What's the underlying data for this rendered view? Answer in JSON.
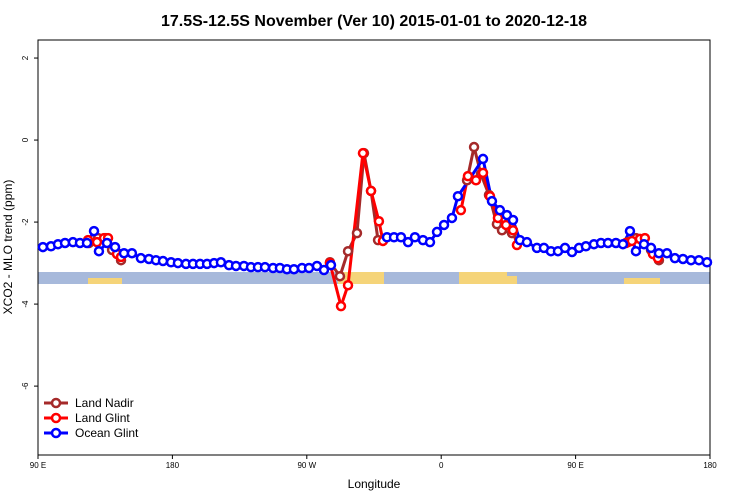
{
  "chart_data": {
    "type": "line",
    "title": "17.5S-12.5S November (Ver 10)   2015-01-01 to 2020-12-18",
    "x_label": "Longitude",
    "y_label": "XCO2 - MLO trend (ppm)",
    "xlim": [
      90,
      540
    ],
    "xticks": [
      {
        "value": 90,
        "label": "90 E"
      },
      180,
      {
        "value": 270,
        "label": "90 W"
      },
      {
        "value": 360,
        "label": "0"
      },
      {
        "value": 450,
        "label": "90 E"
      },
      {
        "value": 540,
        "label": "180"
      }
    ],
    "ylim": [
      -7.68,
      2.44
    ],
    "yticks": [
      -6,
      -4,
      -2,
      0,
      2
    ],
    "legend": "bottom-left",
    "series": [
      {
        "name": "Land Nadir",
        "color": "#a52a2a",
        "x": [
          124.1,
          130.2,
          135.5,
          139.6,
          145.6,
          null,
          285.5,
          292.2,
          297.6,
          303.6,
          308.3,
          313.0,
          317.7,
          null,
          377.3,
          382.0,
          386.6,
          392.0,
          397.3,
          400.7,
          407.4,
          null,
          485.0,
          490.4,
          495.1,
          500.5,
          505.8
        ],
        "values": [
          -2.51,
          -2.39,
          -2.39,
          -2.68,
          -2.93,
          null,
          -2.98,
          -3.32,
          -2.71,
          -2.27,
          -0.32,
          -1.24,
          -2.44,
          null,
          -0.98,
          -0.17,
          -0.83,
          -1.34,
          -2.05,
          -2.2,
          -2.27,
          null,
          -2.49,
          -2.39,
          -2.44,
          -2.68,
          -2.93
        ]
      },
      {
        "name": "Land Glint",
        "color": "#ff0000",
        "x": [
          123.5,
          129.5,
          134.2,
          136.9,
          142.9,
          145.6,
          null,
          285.5,
          292.9,
          297.6,
          307.6,
          313.0,
          318.3,
          321.0,
          null,
          373.2,
          377.9,
          383.3,
          388.0,
          392.7,
          398.0,
          403.4,
          408.1,
          410.7,
          null,
          483.7,
          487.7,
          493.1,
          496.4,
          501.8,
          505.1
        ],
        "values": [
          -2.44,
          -2.49,
          -2.39,
          -2.39,
          -2.78,
          -2.85,
          null,
          -3.0,
          -4.05,
          -3.54,
          -0.32,
          -1.24,
          -1.98,
          -2.46,
          null,
          -1.71,
          -0.88,
          -0.98,
          -0.8,
          -1.37,
          -1.9,
          -2.07,
          -2.2,
          -2.56,
          null,
          -2.51,
          -2.46,
          -2.41,
          -2.39,
          -2.78,
          -2.88
        ]
      },
      {
        "name": "Ocean Glint",
        "color": "#0000ff",
        "x": [
          93.3,
          98.7,
          103.4,
          108.1,
          113.4,
          118.1,
          122.8,
          127.5,
          130.8,
          136.2,
          141.6,
          147.6,
          152.9,
          158.9,
          164.3,
          169.0,
          173.7,
          179.1,
          183.7,
          189.1,
          193.8,
          198.5,
          203.2,
          207.9,
          212.5,
          217.9,
          222.6,
          227.9,
          232.6,
          237.3,
          242.0,
          247.4,
          252.0,
          256.7,
          261.4,
          266.8,
          271.5,
          276.8,
          281.5,
          286.2,
          null,
          323.7,
          328.4,
          333.1,
          337.8,
          342.4,
          347.8,
          352.5,
          357.2,
          361.9,
          367.2,
          371.2,
          388.0,
          394.0,
          399.3,
          404.0,
          408.1,
          412.7,
          417.4,
          424.1,
          428.8,
          433.5,
          438.2,
          442.9,
          447.6,
          452.3,
          456.9,
          462.3,
          467.0,
          471.7,
          477.0,
          481.7,
          486.4,
          490.4,
          495.8,
          500.5,
          505.8,
          511.2,
          516.5,
          521.9,
          527.3,
          532.6,
          538.0
        ],
        "values": [
          -2.61,
          -2.59,
          -2.54,
          -2.51,
          -2.49,
          -2.51,
          -2.51,
          -2.22,
          -2.71,
          -2.51,
          -2.61,
          -2.76,
          -2.76,
          -2.88,
          -2.9,
          -2.93,
          -2.95,
          -2.98,
          -3.0,
          -3.02,
          -3.02,
          -3.02,
          -3.02,
          -3.0,
          -2.98,
          -3.05,
          -3.07,
          -3.07,
          -3.1,
          -3.1,
          -3.1,
          -3.12,
          -3.12,
          -3.15,
          -3.15,
          -3.12,
          -3.12,
          -3.07,
          -3.17,
          -3.05,
          null,
          -2.37,
          -2.37,
          -2.37,
          -2.49,
          -2.37,
          -2.44,
          -2.49,
          -2.24,
          -2.07,
          -1.9,
          -1.37,
          -0.46,
          -1.49,
          -1.71,
          -1.83,
          -1.95,
          -2.44,
          -2.49,
          -2.63,
          -2.63,
          -2.71,
          -2.71,
          -2.63,
          -2.73,
          -2.63,
          -2.59,
          -2.54,
          -2.51,
          -2.51,
          -2.51,
          -2.54,
          -2.22,
          -2.71,
          -2.54,
          -2.63,
          -2.76,
          -2.76,
          -2.88,
          -2.9,
          -2.93,
          -2.93,
          -2.98
        ]
      }
    ]
  }
}
